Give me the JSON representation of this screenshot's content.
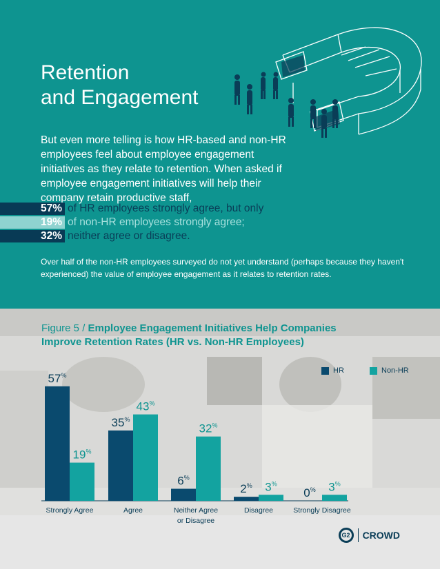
{
  "header": {
    "title_line1": "Retention",
    "title_line2": "and Engagement"
  },
  "intro": {
    "paragraph": "But even more telling is how HR-based and non-HR employees feel about employee engagement initiatives as they relate to retention. When asked if employee engagement initiatives will help their company retain productive staff,",
    "stats": [
      {
        "value": "57%",
        "text": "of HR employees strongly agree, but only"
      },
      {
        "value": "19%",
        "text": "of non-HR employees strongly agree;"
      },
      {
        "value": "32%",
        "text": "neither agree or disagree."
      }
    ]
  },
  "note": "Over half of the non-HR employees surveyed do not yet understand (perhaps because they haven't experienced) the value of employee engagement as it relates to retention rates.",
  "figure": {
    "lead": "Figure 5 / ",
    "title": "Employee Engagement Initiatives Help Companies Improve Retention Rates (HR vs. Non-HR Employees)"
  },
  "chart_data": {
    "type": "bar",
    "categories": [
      "Strongly Agree",
      "Agree",
      "Neither Agree or Disagree",
      "Disagree",
      "Strongly Disagree"
    ],
    "series": [
      {
        "name": "HR",
        "values": [
          57,
          35,
          6,
          2,
          0
        ],
        "color": "#0a4a6e"
      },
      {
        "name": "Non-HR",
        "values": [
          19,
          43,
          32,
          3,
          3
        ],
        "color": "#13a3a0"
      }
    ],
    "value_suffix": "%",
    "ylim": [
      0,
      60
    ],
    "legend": "top-right"
  },
  "brand": {
    "logo_text": "G2",
    "name": "CROWD"
  },
  "colors": {
    "teal": "#0e9490",
    "navy": "#083a55",
    "light_teal": "#8fd3d0"
  }
}
